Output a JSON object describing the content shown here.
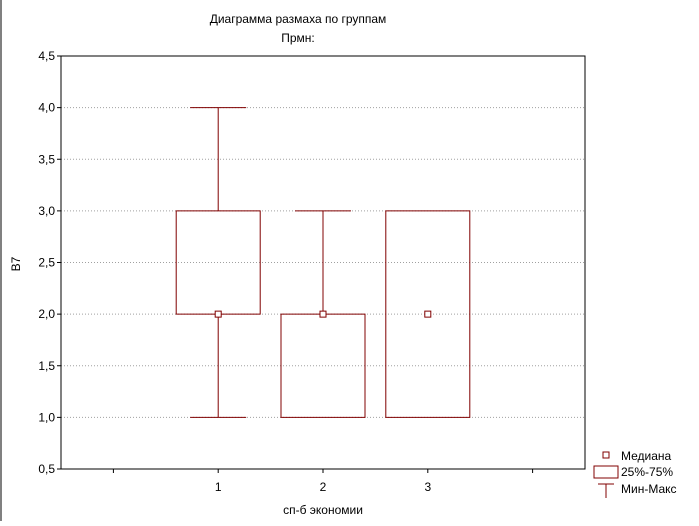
{
  "chart_data": {
    "type": "box",
    "title": "Диаграмма размаха по группам",
    "subtitle": "Прмн:",
    "xlabel": "сп-б экономии",
    "ylabel": "B7",
    "categories": [
      "1",
      "2",
      "3"
    ],
    "ylim": [
      0.5,
      4.5
    ],
    "yticks": [
      "0,5",
      "1,0",
      "1,5",
      "2,0",
      "2,5",
      "3,0",
      "3,5",
      "4,0",
      "4,5"
    ],
    "ytick_values": [
      0.5,
      1.0,
      1.5,
      2.0,
      2.5,
      3.0,
      3.5,
      4.0,
      4.5
    ],
    "grid": true,
    "legend_position": "bottom-right",
    "legend": {
      "median": "Медиана",
      "box": "25%-75%",
      "whisker": "Мин-Макс"
    },
    "boxes": [
      {
        "category": "1",
        "min": 1.0,
        "q1": 2.0,
        "median": 2.0,
        "q3": 3.0,
        "max": 4.0
      },
      {
        "category": "2",
        "min": 1.0,
        "q1": 1.0,
        "median": 2.0,
        "q3": 2.0,
        "max": 3.0
      },
      {
        "category": "3",
        "min": 1.0,
        "q1": 1.0,
        "median": 2.0,
        "q3": 3.0,
        "max": 3.0
      }
    ],
    "colors": {
      "box": "#800000",
      "grid": "#a0a0a0",
      "axis": "#000000"
    }
  }
}
